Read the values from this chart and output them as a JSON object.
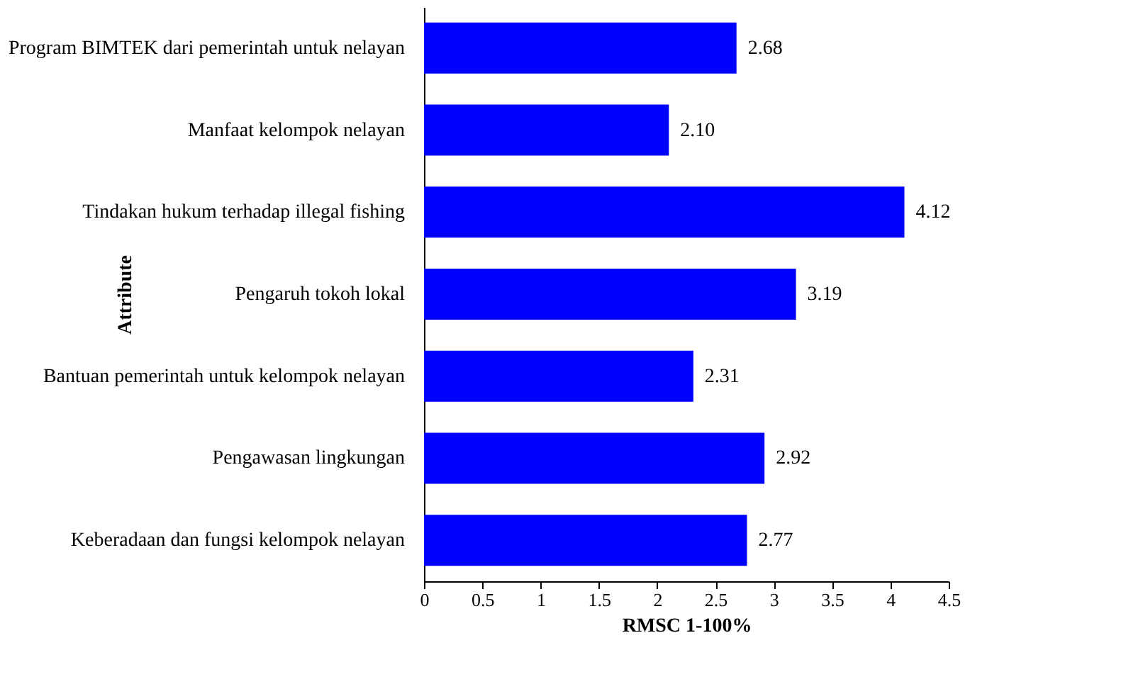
{
  "chart_data": {
    "type": "bar",
    "orientation": "horizontal",
    "xlabel": "RMSC 1-100%",
    "ylabel": "Attribute",
    "categories": [
      "Program BIMTEK dari pemerintah untuk nelayan",
      "Manfaat kelompok nelayan",
      "Tindakan hukum terhadap illegal fishing",
      "Pengaruh tokoh lokal",
      "Bantuan pemerintah untuk kelompok nelayan",
      "Pengawasan lingkungan",
      "Keberadaan dan fungsi kelompok nelayan"
    ],
    "values": [
      2.68,
      2.1,
      4.12,
      3.19,
      2.31,
      2.92,
      2.77
    ],
    "value_labels": [
      "2.68",
      "2.10",
      "4.12",
      "3.19",
      "2.31",
      "2.92",
      "2.77"
    ],
    "color": "#0000ff",
    "xlim": [
      0,
      4.5
    ],
    "xticks": [
      0,
      0.5,
      1,
      1.5,
      2,
      2.5,
      3,
      3.5,
      4,
      4.5
    ],
    "grid": false
  }
}
